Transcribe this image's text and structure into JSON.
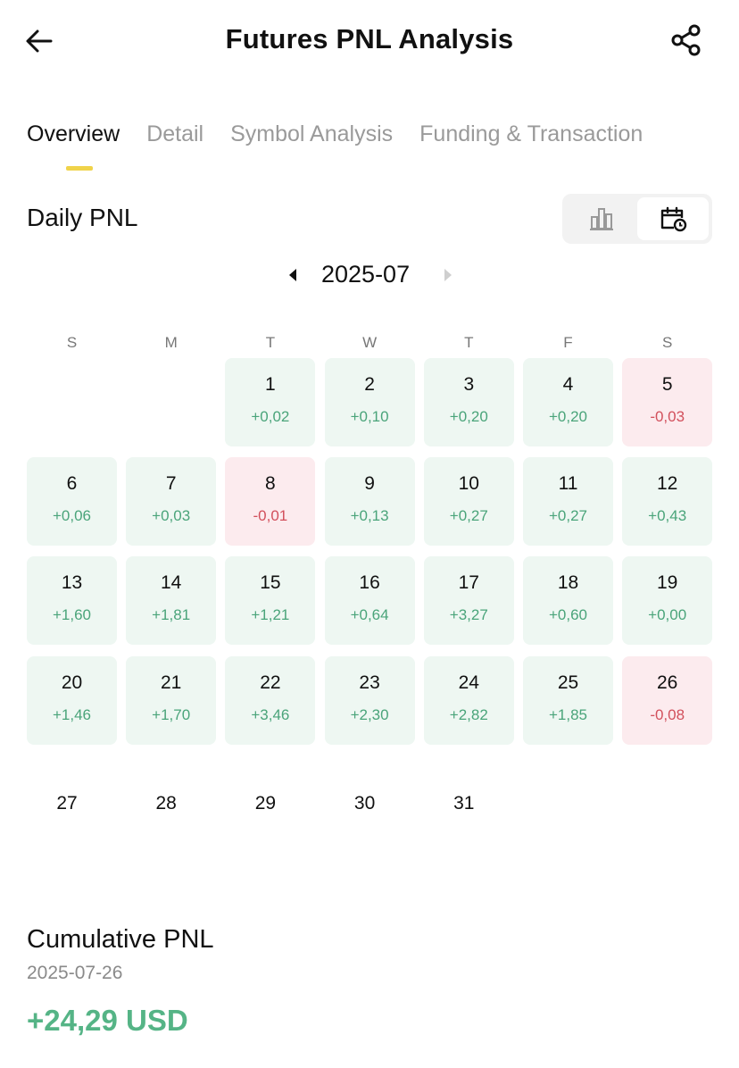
{
  "header": {
    "title": "Futures PNL Analysis"
  },
  "tabs": [
    {
      "label": "Overview"
    },
    {
      "label": "Detail"
    },
    {
      "label": "Symbol Analysis"
    },
    {
      "label": "Funding & Transaction"
    }
  ],
  "daily": {
    "title": "Daily PNL",
    "month": "2025-07"
  },
  "weekdays": [
    "S",
    "M",
    "T",
    "W",
    "T",
    "F",
    "S"
  ],
  "calendar": {
    "first_weekday": 2,
    "days": [
      {
        "day": "1",
        "pnl": "+0,02",
        "status": "pos"
      },
      {
        "day": "2",
        "pnl": "+0,10",
        "status": "pos"
      },
      {
        "day": "3",
        "pnl": "+0,20",
        "status": "pos"
      },
      {
        "day": "4",
        "pnl": "+0,20",
        "status": "pos"
      },
      {
        "day": "5",
        "pnl": "-0,03",
        "status": "neg"
      },
      {
        "day": "6",
        "pnl": "+0,06",
        "status": "pos"
      },
      {
        "day": "7",
        "pnl": "+0,03",
        "status": "pos"
      },
      {
        "day": "8",
        "pnl": "-0,01",
        "status": "neg"
      },
      {
        "day": "9",
        "pnl": "+0,13",
        "status": "pos"
      },
      {
        "day": "10",
        "pnl": "+0,27",
        "status": "pos"
      },
      {
        "day": "11",
        "pnl": "+0,27",
        "status": "pos"
      },
      {
        "day": "12",
        "pnl": "+0,43",
        "status": "pos"
      },
      {
        "day": "13",
        "pnl": "+1,60",
        "status": "pos"
      },
      {
        "day": "14",
        "pnl": "+1,81",
        "status": "pos"
      },
      {
        "day": "15",
        "pnl": "+1,21",
        "status": "pos"
      },
      {
        "day": "16",
        "pnl": "+0,64",
        "status": "pos"
      },
      {
        "day": "17",
        "pnl": "+3,27",
        "status": "pos"
      },
      {
        "day": "18",
        "pnl": "+0,60",
        "status": "pos"
      },
      {
        "day": "19",
        "pnl": "+0,00",
        "status": "pos"
      },
      {
        "day": "20",
        "pnl": "+1,46",
        "status": "pos"
      },
      {
        "day": "21",
        "pnl": "+1,70",
        "status": "pos"
      },
      {
        "day": "22",
        "pnl": "+3,46",
        "status": "pos"
      },
      {
        "day": "23",
        "pnl": "+2,30",
        "status": "pos"
      },
      {
        "day": "24",
        "pnl": "+2,82",
        "status": "pos"
      },
      {
        "day": "25",
        "pnl": "+1,85",
        "status": "pos"
      },
      {
        "day": "26",
        "pnl": "-0,08",
        "status": "neg"
      },
      {
        "day": "27",
        "pnl": "",
        "status": "none"
      },
      {
        "day": "28",
        "pnl": "",
        "status": "none"
      },
      {
        "day": "29",
        "pnl": "",
        "status": "none"
      },
      {
        "day": "30",
        "pnl": "",
        "status": "none"
      },
      {
        "day": "31",
        "pnl": "",
        "status": "none"
      }
    ]
  },
  "cumulative": {
    "title": "Cumulative PNL",
    "date": "2025-07-26",
    "value": "+24,29 USD"
  },
  "icons": {
    "back": "arrow-left-icon",
    "share": "share-icon",
    "bar_view": "bar-chart-icon",
    "calendar_view": "calendar-clock-icon",
    "prev": "caret-left-icon",
    "next": "caret-right-icon"
  },
  "colors": {
    "accent": "#f0d34a",
    "positive": "#4aa47a",
    "positive_bg": "#eef7f2",
    "negative": "#d2505c",
    "negative_bg": "#fcebee",
    "cumulative": "#55b486"
  }
}
